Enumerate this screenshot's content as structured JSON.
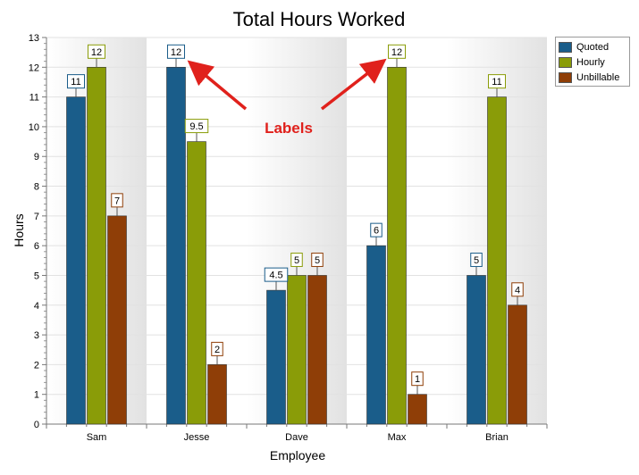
{
  "chart_data": {
    "type": "bar",
    "title": "Total Hours Worked",
    "xlabel": "Employee",
    "ylabel": "Hours",
    "categories": [
      "Sam",
      "Jesse",
      "Dave",
      "Max",
      "Brian"
    ],
    "series": [
      {
        "name": "Quoted",
        "values": [
          11,
          12,
          4.5,
          6,
          5
        ],
        "color": "#1a5d8a",
        "labels": [
          "11",
          "12",
          "4.5",
          "6",
          "5"
        ]
      },
      {
        "name": "Hourly",
        "values": [
          12,
          9.5,
          5,
          12,
          11
        ],
        "color": "#8a9c08",
        "labels": [
          "12",
          "9.5",
          "5",
          "12",
          "11"
        ]
      },
      {
        "name": "Unbillable",
        "values": [
          7,
          2,
          5,
          1,
          4
        ],
        "color": "#8f3e07",
        "labels": [
          "7",
          "2",
          "5",
          "1",
          "4"
        ]
      }
    ],
    "ylim": [
      0,
      13
    ],
    "yticks": [
      "0",
      "1",
      "2",
      "3",
      "4",
      "5",
      "6",
      "7",
      "8",
      "9",
      "10",
      "11",
      "12",
      "13"
    ],
    "grid": true,
    "legend_position": "top-right",
    "annotation": {
      "text": "Labels",
      "color": "#e0211c"
    }
  }
}
